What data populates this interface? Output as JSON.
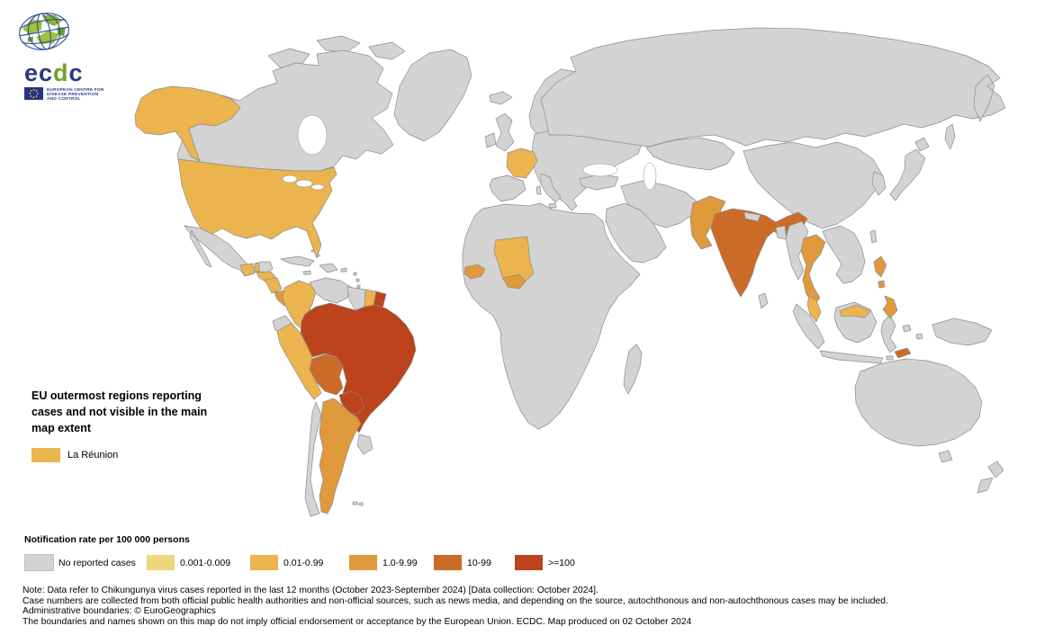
{
  "logo": {
    "abbr_part1": "ec",
    "abbr_part2": "d",
    "abbr_part3": "c",
    "name_lines": [
      "EUROPEAN CENTRE FOR",
      "DISEASE PREVENTION",
      "AND CONTROL"
    ]
  },
  "outermost_note": {
    "line1": "EU outermost regions reporting",
    "line2": "cases and not visible in the main",
    "line3": "map extent",
    "region_label": "La Réunion",
    "region_category": "0.01-0.99",
    "swatch_color": "#EBB44E"
  },
  "legend": {
    "title": "Notification rate per 100 000 persons",
    "items": [
      {
        "key": "none",
        "label": "No reported cases",
        "color": "#D3D3D3"
      },
      {
        "key": "c1",
        "label": "0.001-0.009",
        "color": "#F0D77E"
      },
      {
        "key": "c2",
        "label": "0.01-0.99",
        "color": "#EBB44E"
      },
      {
        "key": "c3",
        "label": "1.0-9.99",
        "color": "#E0993B"
      },
      {
        "key": "c4",
        "label": "10-99",
        "color": "#CB6B27"
      },
      {
        "key": "c5",
        "label": ">=100",
        "color": "#BC431C"
      }
    ]
  },
  "footer": {
    "lines": [
      "Note: Data refer to Chikungunya virus cases reported in the last 12 months (October 2023-September 2024) [Data collection: October 2024].",
      "Case numbers are collected from both official public health authorities and non-official sources, such as news media, and depending on the source, autochthonous and non-autochthonous cases may be included.",
      "Administrative boundaries: © EuroGeographics",
      "The boundaries and names shown on this map do not imply official endorsement or acceptance by the European Union. ECDC. Map produced on 02 October 2024"
    ]
  },
  "map": {
    "border_color": "#8C8C8C",
    "ocean_color": "#FFFFFF",
    "regions": [
      {
        "id": "greenland",
        "name": "Greenland",
        "category": "none"
      },
      {
        "id": "canadian-arctic",
        "name": "Canadian Arctic Islands",
        "category": "none"
      },
      {
        "id": "canada",
        "name": "Canada",
        "category": "none"
      },
      {
        "id": "alaska",
        "name": "United States (Alaska)",
        "category": "c2"
      },
      {
        "id": "usa",
        "name": "United States of America",
        "category": "c2"
      },
      {
        "id": "mexico",
        "name": "Mexico",
        "category": "none"
      },
      {
        "id": "cuba",
        "name": "Cuba",
        "category": "none"
      },
      {
        "id": "hispaniola",
        "name": "Hispaniola",
        "category": "none"
      },
      {
        "id": "jamaica",
        "name": "Jamaica",
        "category": "none"
      },
      {
        "id": "puerto-rico",
        "name": "Puerto Rico",
        "category": "none"
      },
      {
        "id": "lesser-antilles",
        "name": "Lesser Antilles",
        "category": "none"
      },
      {
        "id": "bahamas",
        "name": "Bahamas",
        "category": "none"
      },
      {
        "id": "guatemala",
        "name": "Guatemala",
        "category": "c2"
      },
      {
        "id": "belize",
        "name": "Belize",
        "category": "c2"
      },
      {
        "id": "honduras",
        "name": "Honduras",
        "category": "c2"
      },
      {
        "id": "nicaragua",
        "name": "Nicaragua",
        "category": "c2"
      },
      {
        "id": "costa-rica",
        "name": "Costa Rica",
        "category": "c3"
      },
      {
        "id": "panama",
        "name": "Panama",
        "category": "none"
      },
      {
        "id": "colombia",
        "name": "Colombia",
        "category": "c2"
      },
      {
        "id": "venezuela",
        "name": "Venezuela",
        "category": "none"
      },
      {
        "id": "guyana",
        "name": "Guyana",
        "category": "none"
      },
      {
        "id": "suriname",
        "name": "Suriname",
        "category": "c2"
      },
      {
        "id": "french-guiana",
        "name": "French Guiana",
        "category": "c5"
      },
      {
        "id": "ecuador",
        "name": "Ecuador",
        "category": "none"
      },
      {
        "id": "brazil",
        "name": "Brazil",
        "category": "c5"
      },
      {
        "id": "peru",
        "name": "Peru",
        "category": "c2"
      },
      {
        "id": "bolivia",
        "name": "Bolivia",
        "category": "c4"
      },
      {
        "id": "paraguay",
        "name": "Paraguay",
        "category": "c5"
      },
      {
        "id": "argentina",
        "name": "Argentina",
        "category": "c3"
      },
      {
        "id": "chile",
        "name": "Chile",
        "category": "none"
      },
      {
        "id": "uruguay",
        "name": "Uruguay",
        "category": "none"
      },
      {
        "id": "falkland-islands",
        "name": "Falkland Islands",
        "category": "none"
      },
      {
        "id": "iceland",
        "name": "Iceland",
        "category": "none"
      },
      {
        "id": "ireland",
        "name": "Ireland",
        "category": "none"
      },
      {
        "id": "uk",
        "name": "United Kingdom",
        "category": "none"
      },
      {
        "id": "scandinavia",
        "name": "Scandinavia",
        "category": "none"
      },
      {
        "id": "europe-mainland",
        "name": "Mainland Europe",
        "category": "none"
      },
      {
        "id": "france",
        "name": "France",
        "category": "c2"
      },
      {
        "id": "iberia",
        "name": "Iberian Peninsula",
        "category": "none"
      },
      {
        "id": "italy",
        "name": "Italy",
        "category": "none"
      },
      {
        "id": "russia",
        "name": "Russia and Northern Asia",
        "category": "none"
      },
      {
        "id": "central-asia",
        "name": "Central Asia",
        "category": "none"
      },
      {
        "id": "turkey",
        "name": "Turkey",
        "category": "none"
      },
      {
        "id": "west-asia",
        "name": "Western Asia",
        "category": "none"
      },
      {
        "id": "arabia",
        "name": "Arabian Peninsula",
        "category": "none"
      },
      {
        "id": "africa",
        "name": "Africa",
        "category": "none"
      },
      {
        "id": "mali",
        "name": "Mali",
        "category": "c2"
      },
      {
        "id": "senegal",
        "name": "Senegal",
        "category": "c3"
      },
      {
        "id": "burkina-faso",
        "name": "Burkina Faso",
        "category": "c3"
      },
      {
        "id": "madagascar",
        "name": "Madagascar",
        "category": "none"
      },
      {
        "id": "china",
        "name": "China",
        "category": "none"
      },
      {
        "id": "korea",
        "name": "Korean Peninsula",
        "category": "none"
      },
      {
        "id": "japan",
        "name": "Japan",
        "category": "none"
      },
      {
        "id": "taiwan",
        "name": "Taiwan",
        "category": "none"
      },
      {
        "id": "pakistan",
        "name": "Pakistan",
        "category": "c3"
      },
      {
        "id": "india",
        "name": "India",
        "category": "c4"
      },
      {
        "id": "nepal",
        "name": "Nepal",
        "category": "none"
      },
      {
        "id": "bangladesh",
        "name": "Bangladesh",
        "category": "none"
      },
      {
        "id": "sri-lanka",
        "name": "Sri Lanka",
        "category": "none"
      },
      {
        "id": "myanmar",
        "name": "Myanmar",
        "category": "none"
      },
      {
        "id": "thailand",
        "name": "Thailand",
        "category": "c3"
      },
      {
        "id": "indochina",
        "name": "Laos, Cambodia and Vietnam",
        "category": "none"
      },
      {
        "id": "malay-peninsula",
        "name": "Malaysia (Peninsular)",
        "category": "c2"
      },
      {
        "id": "sumatra",
        "name": "Sumatra",
        "category": "none"
      },
      {
        "id": "borneo",
        "name": "Borneo",
        "category": "none"
      },
      {
        "id": "malaysia-borneo",
        "name": "Malaysia (Borneo)",
        "category": "c2"
      },
      {
        "id": "java",
        "name": "Java",
        "category": "none"
      },
      {
        "id": "sulawesi",
        "name": "Sulawesi",
        "category": "none"
      },
      {
        "id": "philippines",
        "name": "Philippines",
        "category": "c3"
      },
      {
        "id": "indonesia-islands",
        "name": "Eastern Indonesia",
        "category": "none"
      },
      {
        "id": "timor-leste",
        "name": "Timor-Leste",
        "category": "c4"
      },
      {
        "id": "new-guinea",
        "name": "New Guinea",
        "category": "none"
      },
      {
        "id": "australia",
        "name": "Australia",
        "category": "none"
      },
      {
        "id": "tasmania",
        "name": "Tasmania",
        "category": "none"
      },
      {
        "id": "new-zealand",
        "name": "New Zealand",
        "category": "none"
      }
    ]
  }
}
